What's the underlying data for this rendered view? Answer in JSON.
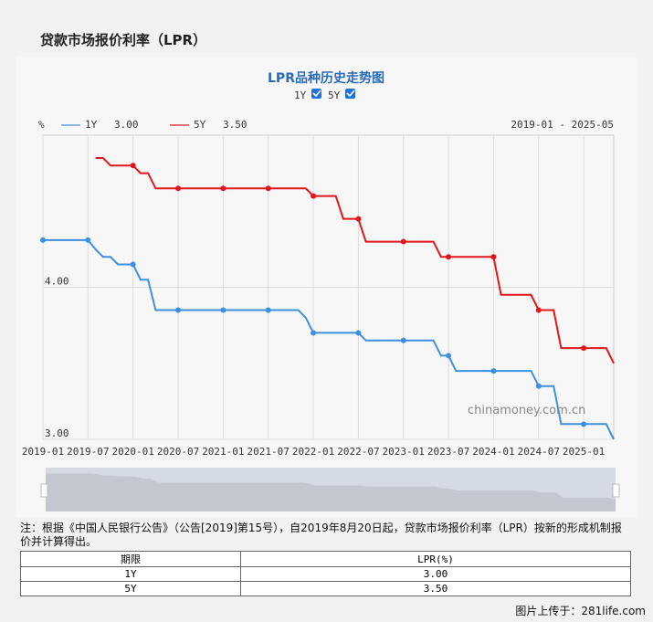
{
  "page_title": "贷款市场报价利率（LPR）",
  "chart_data": {
    "type": "line",
    "title": "LPR品种历史走势图",
    "toggles": [
      {
        "label": "1Y",
        "checked": true
      },
      {
        "label": "5Y",
        "checked": true
      }
    ],
    "unit": "%",
    "date_range": "2019-01 - 2025-05",
    "x_start": "2019-01",
    "x_end": "2025-05",
    "x_ticks": [
      "2019-01",
      "2019-07",
      "2020-01",
      "2020-07",
      "2021-01",
      "2021-07",
      "2022-01",
      "2022-07",
      "2023-01",
      "2023-07",
      "2024-01",
      "2024-07",
      "2025-01"
    ],
    "y_ticks": [
      "3.00",
      "4.00"
    ],
    "ylim": [
      3.0,
      5.0
    ],
    "grid": true,
    "legend_placement": "top-left",
    "watermark": "chinamoney.com.cn",
    "series": [
      {
        "name": "1Y",
        "latest": "3.00",
        "color": "#3d8fe0",
        "values": [
          4.31,
          4.31,
          4.31,
          4.31,
          4.31,
          4.31,
          4.31,
          4.25,
          4.2,
          4.2,
          4.15,
          4.15,
          4.15,
          4.05,
          4.05,
          3.85,
          3.85,
          3.85,
          3.85,
          3.85,
          3.85,
          3.85,
          3.85,
          3.85,
          3.85,
          3.85,
          3.85,
          3.85,
          3.85,
          3.85,
          3.85,
          3.85,
          3.85,
          3.85,
          3.85,
          3.8,
          3.7,
          3.7,
          3.7,
          3.7,
          3.7,
          3.7,
          3.7,
          3.65,
          3.65,
          3.65,
          3.65,
          3.65,
          3.65,
          3.65,
          3.65,
          3.65,
          3.65,
          3.55,
          3.55,
          3.45,
          3.45,
          3.45,
          3.45,
          3.45,
          3.45,
          3.45,
          3.45,
          3.45,
          3.45,
          3.45,
          3.35,
          3.35,
          3.35,
          3.1,
          3.1,
          3.1,
          3.1,
          3.1,
          3.1,
          3.1,
          3.0
        ]
      },
      {
        "name": "5Y",
        "latest": "3.50",
        "color": "#e0161b",
        "values": [
          null,
          null,
          null,
          null,
          null,
          null,
          null,
          4.85,
          4.85,
          4.8,
          4.8,
          4.8,
          4.8,
          4.75,
          4.75,
          4.65,
          4.65,
          4.65,
          4.65,
          4.65,
          4.65,
          4.65,
          4.65,
          4.65,
          4.65,
          4.65,
          4.65,
          4.65,
          4.65,
          4.65,
          4.65,
          4.65,
          4.65,
          4.65,
          4.65,
          4.65,
          4.6,
          4.6,
          4.6,
          4.6,
          4.45,
          4.45,
          4.45,
          4.3,
          4.3,
          4.3,
          4.3,
          4.3,
          4.3,
          4.3,
          4.3,
          4.3,
          4.3,
          4.2,
          4.2,
          4.2,
          4.2,
          4.2,
          4.2,
          4.2,
          4.2,
          3.95,
          3.95,
          3.95,
          3.95,
          3.95,
          3.85,
          3.85,
          3.85,
          3.6,
          3.6,
          3.6,
          3.6,
          3.6,
          3.6,
          3.6,
          3.5
        ]
      }
    ]
  },
  "note": "注：根据《中国人民银行公告》（公告[2019]第15号），自2019年8月20日起，贷款市场报价利率（LPR）按新的形成机制报价并计算得出。",
  "table": {
    "headers": [
      "期限",
      "LPR(%)"
    ],
    "rows": [
      [
        "1Y",
        "3.00"
      ],
      [
        "5Y",
        "3.50"
      ]
    ]
  },
  "footer": "图片上传于：281life.com"
}
